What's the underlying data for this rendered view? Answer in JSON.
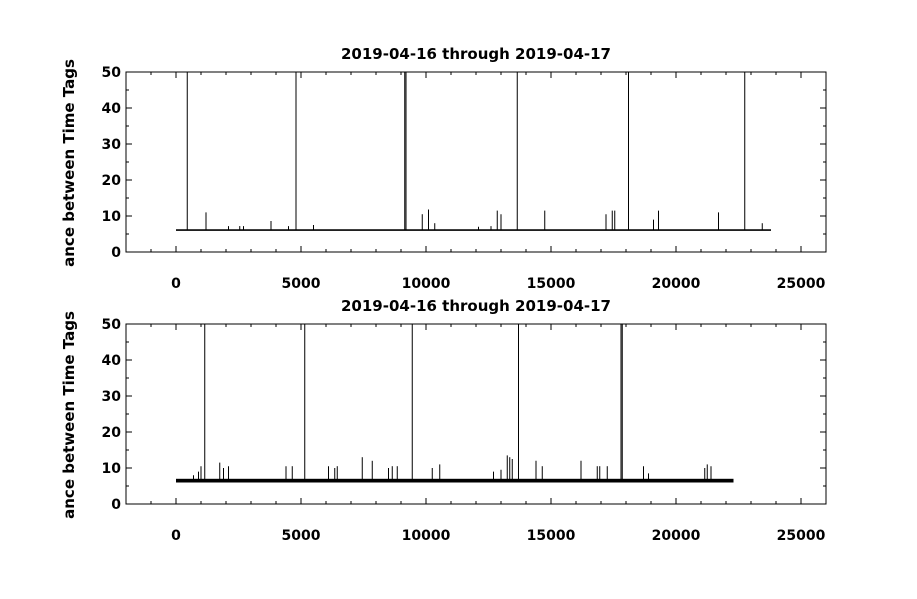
{
  "chart_data": [
    {
      "type": "line",
      "title": "2019-04-16 through 2019-04-17",
      "ylabel": "ance between Time Tags",
      "xlabel": "",
      "xlim": [
        -2000,
        26000
      ],
      "ylim": [
        0,
        50
      ],
      "x_ticks": [
        0,
        5000,
        10000,
        15000,
        20000,
        25000
      ],
      "y_ticks": [
        0,
        10,
        20,
        30,
        40,
        50
      ],
      "grid": false,
      "baseline": {
        "y": 6.1,
        "x_start": 0,
        "x_end": 23800
      },
      "noise_band": null,
      "series": [
        {
          "spikes": [
            [
              450,
              50
            ],
            [
              1200,
              11
            ],
            [
              2100,
              7.2
            ],
            [
              2550,
              7.2
            ],
            [
              2700,
              7.2
            ],
            [
              3800,
              8.6
            ],
            [
              4500,
              7.2
            ],
            [
              4800,
              50
            ],
            [
              5500,
              7.5
            ],
            [
              9150,
              50
            ],
            [
              9200,
              50
            ],
            [
              9850,
              10.5
            ],
            [
              10100,
              11.8
            ],
            [
              10350,
              8
            ],
            [
              12100,
              7
            ],
            [
              12600,
              7.2
            ],
            [
              12850,
              11.5
            ],
            [
              13000,
              10.5
            ],
            [
              13650,
              50
            ],
            [
              14750,
              11.5
            ],
            [
              17200,
              10.5
            ],
            [
              17450,
              11.5
            ],
            [
              17550,
              11.5
            ],
            [
              18100,
              50
            ],
            [
              19100,
              9
            ],
            [
              19300,
              11.5
            ],
            [
              21700,
              11
            ],
            [
              22750,
              50
            ],
            [
              23450,
              8
            ]
          ]
        }
      ]
    },
    {
      "type": "line",
      "title": "2019-04-16 through 2019-04-17",
      "ylabel": "ance between Time Tags",
      "xlabel": "",
      "xlim": [
        -2000,
        26000
      ],
      "ylim": [
        0,
        50
      ],
      "x_ticks": [
        0,
        5000,
        10000,
        15000,
        20000,
        25000
      ],
      "y_ticks": [
        0,
        10,
        20,
        30,
        40,
        50
      ],
      "grid": false,
      "baseline": {
        "y": 6.2,
        "x_start": 0,
        "x_end": 22300
      },
      "noise_band": {
        "y_low": 6.2,
        "y_high": 7.0
      },
      "series": [
        {
          "spikes": [
            [
              700,
              8
            ],
            [
              900,
              9
            ],
            [
              1000,
              10.5
            ],
            [
              1150,
              50
            ],
            [
              1750,
              11.5
            ],
            [
              1900,
              10
            ],
            [
              2100,
              10.5
            ],
            [
              4400,
              10.5
            ],
            [
              4650,
              10.5
            ],
            [
              5150,
              50
            ],
            [
              6100,
              10.5
            ],
            [
              6350,
              10
            ],
            [
              6450,
              10.5
            ],
            [
              7450,
              13
            ],
            [
              7850,
              12
            ],
            [
              8500,
              10
            ],
            [
              8650,
              10.5
            ],
            [
              8850,
              10.5
            ],
            [
              9450,
              50
            ],
            [
              10250,
              10
            ],
            [
              10550,
              11
            ],
            [
              12700,
              9
            ],
            [
              13000,
              9.5
            ],
            [
              13250,
              13.5
            ],
            [
              13350,
              13
            ],
            [
              13450,
              12.5
            ],
            [
              13700,
              50
            ],
            [
              14400,
              12
            ],
            [
              14650,
              10.5
            ],
            [
              16200,
              12
            ],
            [
              16850,
              10.5
            ],
            [
              16950,
              10.5
            ],
            [
              17250,
              10.5
            ],
            [
              17800,
              50
            ],
            [
              17850,
              50
            ],
            [
              18700,
              10.5
            ],
            [
              18900,
              8.5
            ],
            [
              21150,
              10
            ],
            [
              21250,
              11
            ],
            [
              21400,
              10.5
            ]
          ]
        }
      ]
    }
  ]
}
